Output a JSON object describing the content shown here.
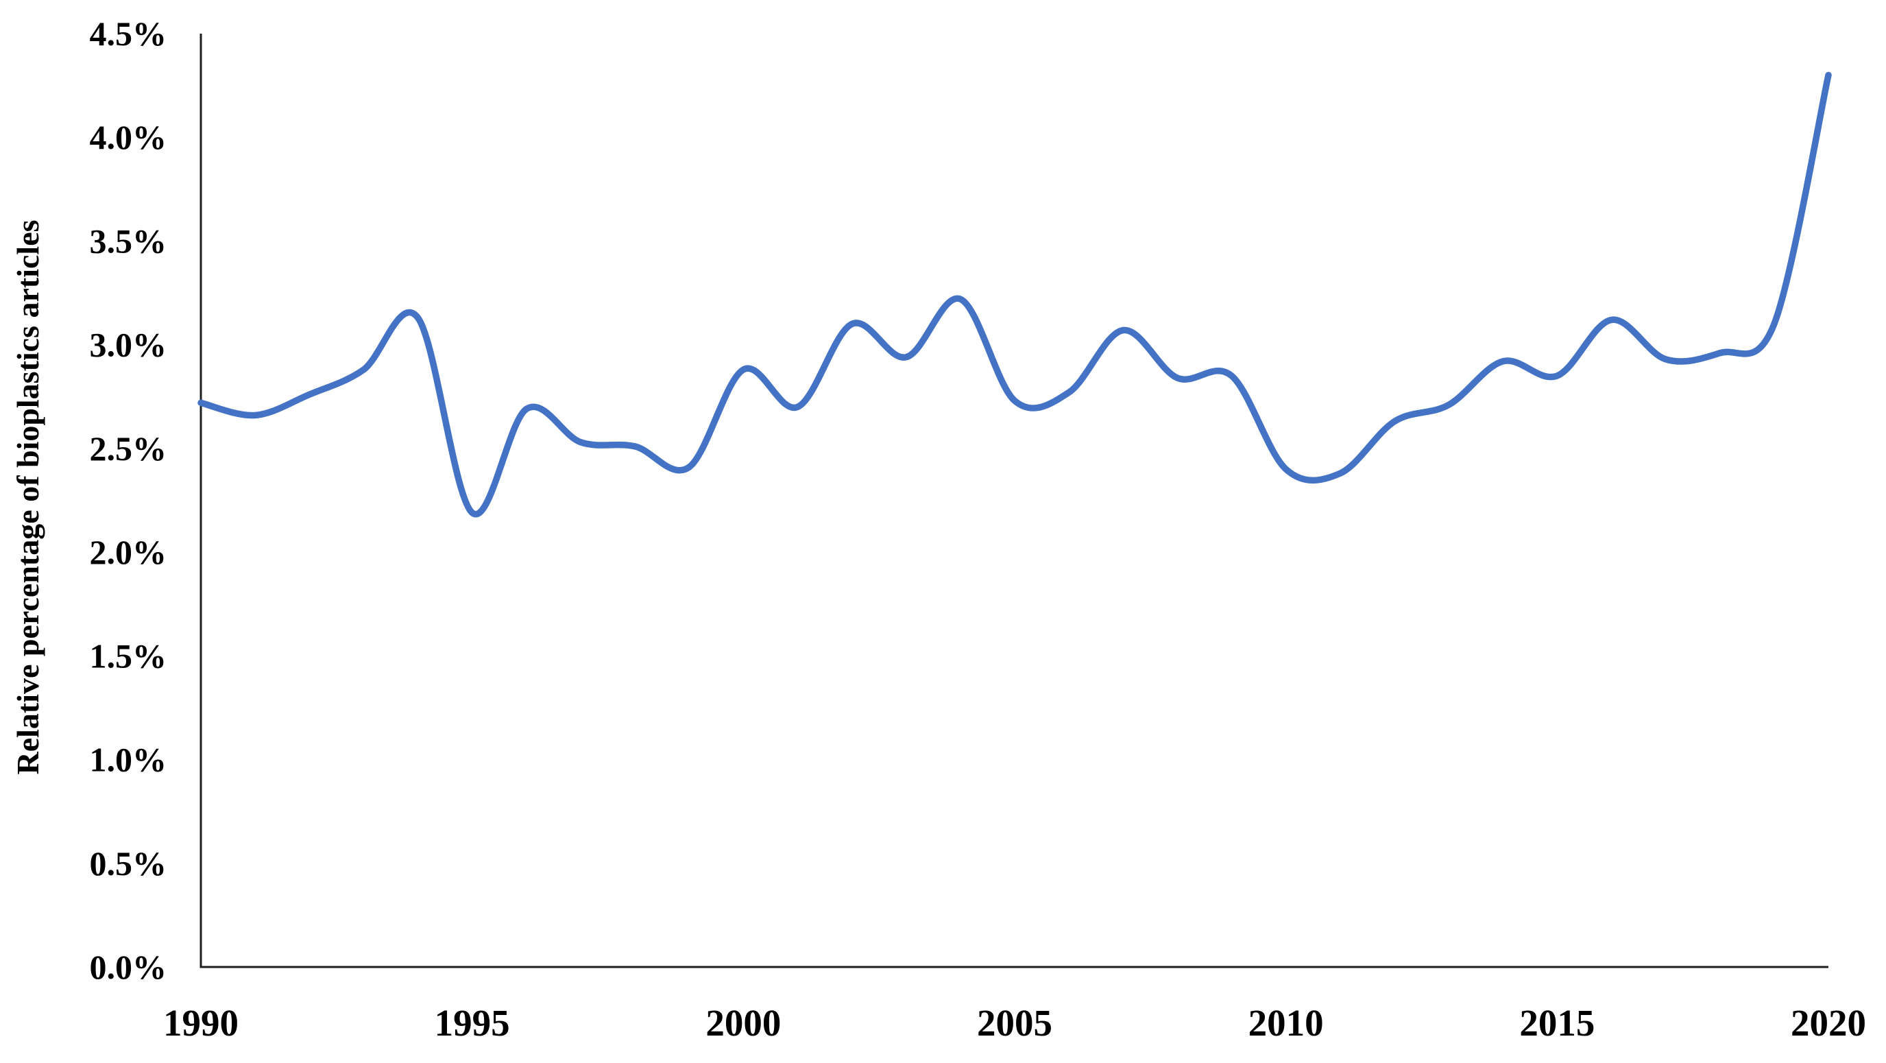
{
  "chart_data": {
    "type": "line",
    "title": "",
    "xlabel": "",
    "ylabel": "Relative percentage of bioplastics articles",
    "x": [
      1990,
      1991,
      1992,
      1993,
      1994,
      1995,
      1996,
      1997,
      1998,
      1999,
      2000,
      2001,
      2002,
      2003,
      2004,
      2005,
      2006,
      2007,
      2008,
      2009,
      2010,
      2011,
      2012,
      2013,
      2014,
      2015,
      2016,
      2017,
      2018,
      2019,
      2020
    ],
    "series": [
      {
        "name": "Relative percentage of bioplastics articles",
        "values": [
          2.72,
          2.66,
          2.76,
          2.88,
          3.13,
          2.19,
          2.69,
          2.53,
          2.51,
          2.41,
          2.88,
          2.7,
          3.1,
          2.94,
          3.22,
          2.73,
          2.77,
          3.07,
          2.84,
          2.85,
          2.4,
          2.38,
          2.63,
          2.71,
          2.92,
          2.85,
          3.12,
          2.93,
          2.96,
          3.1,
          4.3
        ]
      }
    ],
    "xlim": [
      1990,
      2020
    ],
    "ylim": [
      0,
      4.5
    ],
    "x_ticks": [
      {
        "v": 1990,
        "label": "1990"
      },
      {
        "v": 1995,
        "label": "1995"
      },
      {
        "v": 2000,
        "label": "2000"
      },
      {
        "v": 2005,
        "label": "2005"
      },
      {
        "v": 2010,
        "label": "2010"
      },
      {
        "v": 2015,
        "label": "2015"
      },
      {
        "v": 2020,
        "label": "2020"
      }
    ],
    "y_ticks": [
      {
        "v": 0.0,
        "label": "0.0%"
      },
      {
        "v": 0.5,
        "label": "0.5%"
      },
      {
        "v": 1.0,
        "label": "1.0%"
      },
      {
        "v": 1.5,
        "label": "1.5%"
      },
      {
        "v": 2.0,
        "label": "2.0%"
      },
      {
        "v": 2.5,
        "label": "2.5%"
      },
      {
        "v": 3.0,
        "label": "3.0%"
      },
      {
        "v": 3.5,
        "label": "3.5%"
      },
      {
        "v": 4.0,
        "label": "4.0%"
      },
      {
        "v": 4.5,
        "label": "4.5%"
      }
    ],
    "grid": false,
    "legend": "none",
    "line_color": "#4472C4",
    "axis_color": "#1f1f1f",
    "label_color": "#000000"
  }
}
